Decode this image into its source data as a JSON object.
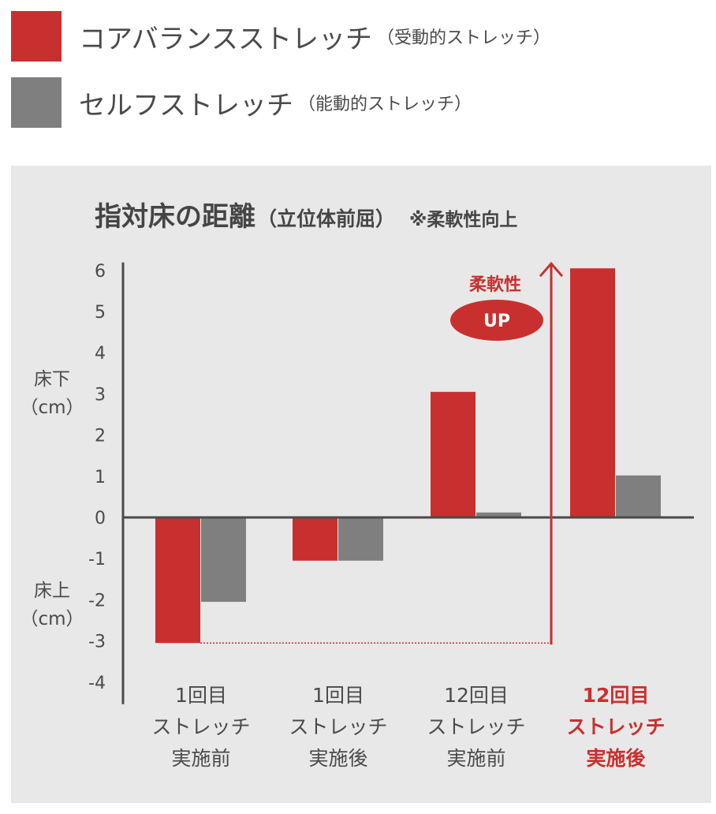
{
  "legend": [
    {
      "label": "コアバランスストレッチ",
      "sub": "（受動的ストレッチ）",
      "color": "#c8302f"
    },
    {
      "label": "セルフストレッチ",
      "sub": "（能動的ストレッチ）",
      "color": "#7f7f7f"
    }
  ],
  "chart_data": {
    "type": "bar",
    "title": "指対床の距離",
    "subtitle": "（立位体前屈）",
    "note": "※柔軟性向上",
    "ylim": [
      -4,
      6
    ],
    "yticks": [
      6,
      5,
      4,
      3,
      2,
      1,
      0,
      -1,
      -2,
      -3,
      -4
    ],
    "ylabel_top": [
      "床下",
      "（cm）"
    ],
    "ylabel_bottom": [
      "床上",
      "（cm）"
    ],
    "categories": [
      [
        "1回目",
        "ストレッチ",
        "実施前"
      ],
      [
        "1回目",
        "ストレッチ",
        "実施後"
      ],
      [
        "12回目",
        "ストレッチ",
        "実施前"
      ],
      [
        "12回目",
        "ストレッチ",
        "実施後"
      ]
    ],
    "highlight_category_index": 3,
    "series": [
      {
        "name": "コアバランスストレッチ",
        "color": "#c8302f",
        "values": [
          -3.05,
          -1.05,
          3.05,
          6.05
        ]
      },
      {
        "name": "セルフストレッチ",
        "color": "#7f7f7f",
        "values": [
          -2.05,
          -1.05,
          0.12,
          1.02
        ]
      }
    ],
    "annotation": {
      "text": "柔軟性",
      "badge": "UP",
      "from": -3.05,
      "to": 6.05
    }
  }
}
